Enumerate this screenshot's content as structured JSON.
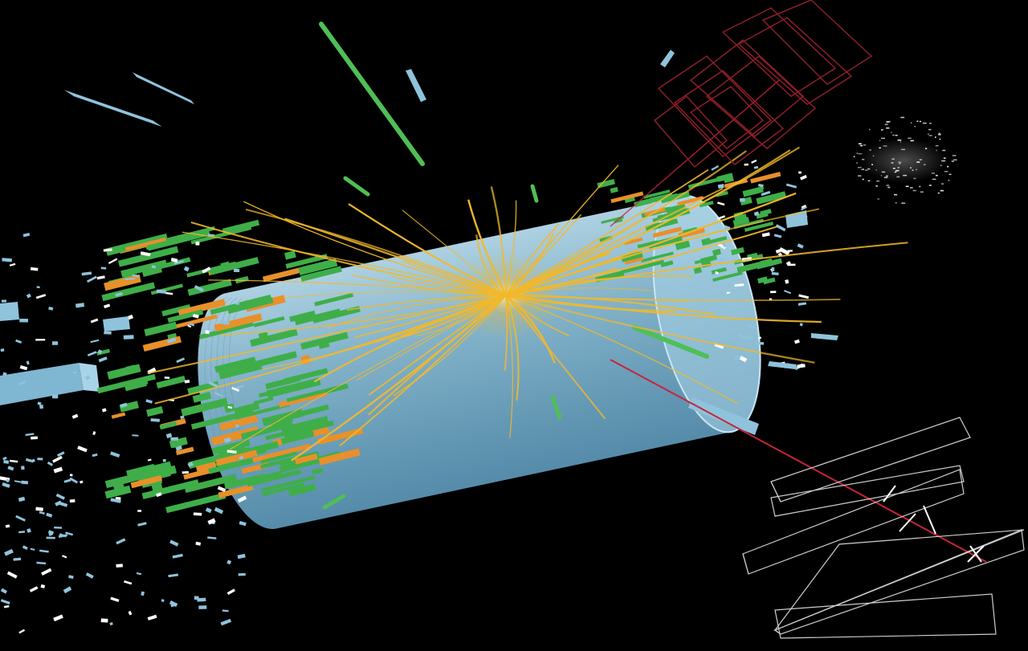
{
  "image": {
    "subject": "particle-collision-event-display",
    "background_color": "#000000"
  },
  "colors": {
    "detector_barrel": "#8fc3dc",
    "detector_endcap": "#a9d3e8",
    "particle_tracks": "#f2b82a",
    "calorimeter_green": "#3fae49",
    "calorimeter_orange": "#e8902a",
    "muon_track": "#c8233a",
    "muon_chambers_red": "#8c1e28",
    "muon_chambers_white": "#d8d8d8",
    "scattered_hits": "#8fc3dc"
  }
}
